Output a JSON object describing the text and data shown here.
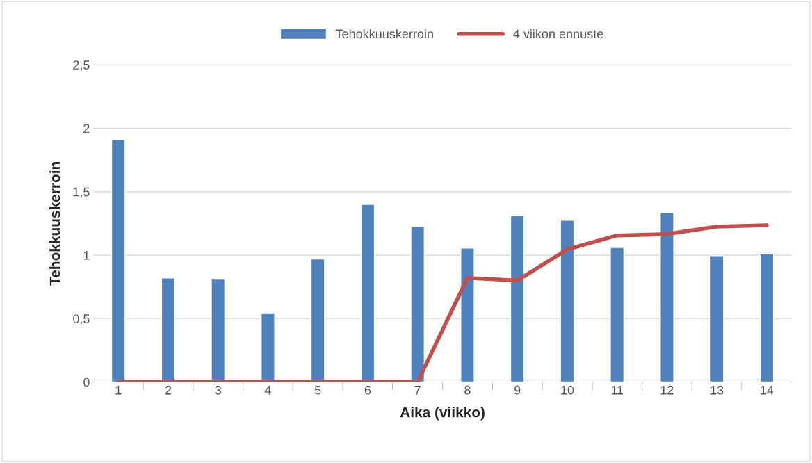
{
  "chart_data": {
    "type": "bar",
    "xlabel": "Aika (viikko)",
    "ylabel": "Tehokkuuskerroin",
    "categories": [
      "1",
      "2",
      "3",
      "4",
      "5",
      "6",
      "7",
      "8",
      "9",
      "10",
      "11",
      "12",
      "13",
      "14"
    ],
    "series": [
      {
        "name": "Tehokkuuskerroin",
        "color": "#4f81bd",
        "values": [
          1.91,
          0.82,
          0.81,
          0.545,
          0.97,
          1.4,
          1.225,
          1.055,
          1.31,
          1.275,
          1.06,
          1.335,
          0.995,
          1.01
        ]
      },
      {
        "name": "4 viikon ennuste",
        "type": "line",
        "color": "#c0504d",
        "values": [
          0,
          0,
          0,
          0,
          0,
          0,
          0,
          0.82,
          0.8,
          1.045,
          1.155,
          1.165,
          1.225,
          1.235
        ]
      }
    ],
    "ylim": [
      0,
      2.5
    ],
    "yticks": [
      0,
      {
        "value": 0.5,
        "label": "0,5"
      },
      1,
      {
        "value": 1.5,
        "label": "1,5"
      },
      2,
      {
        "value": 2.5,
        "label": "2,5"
      }
    ],
    "grid": "y",
    "legend": "top"
  }
}
